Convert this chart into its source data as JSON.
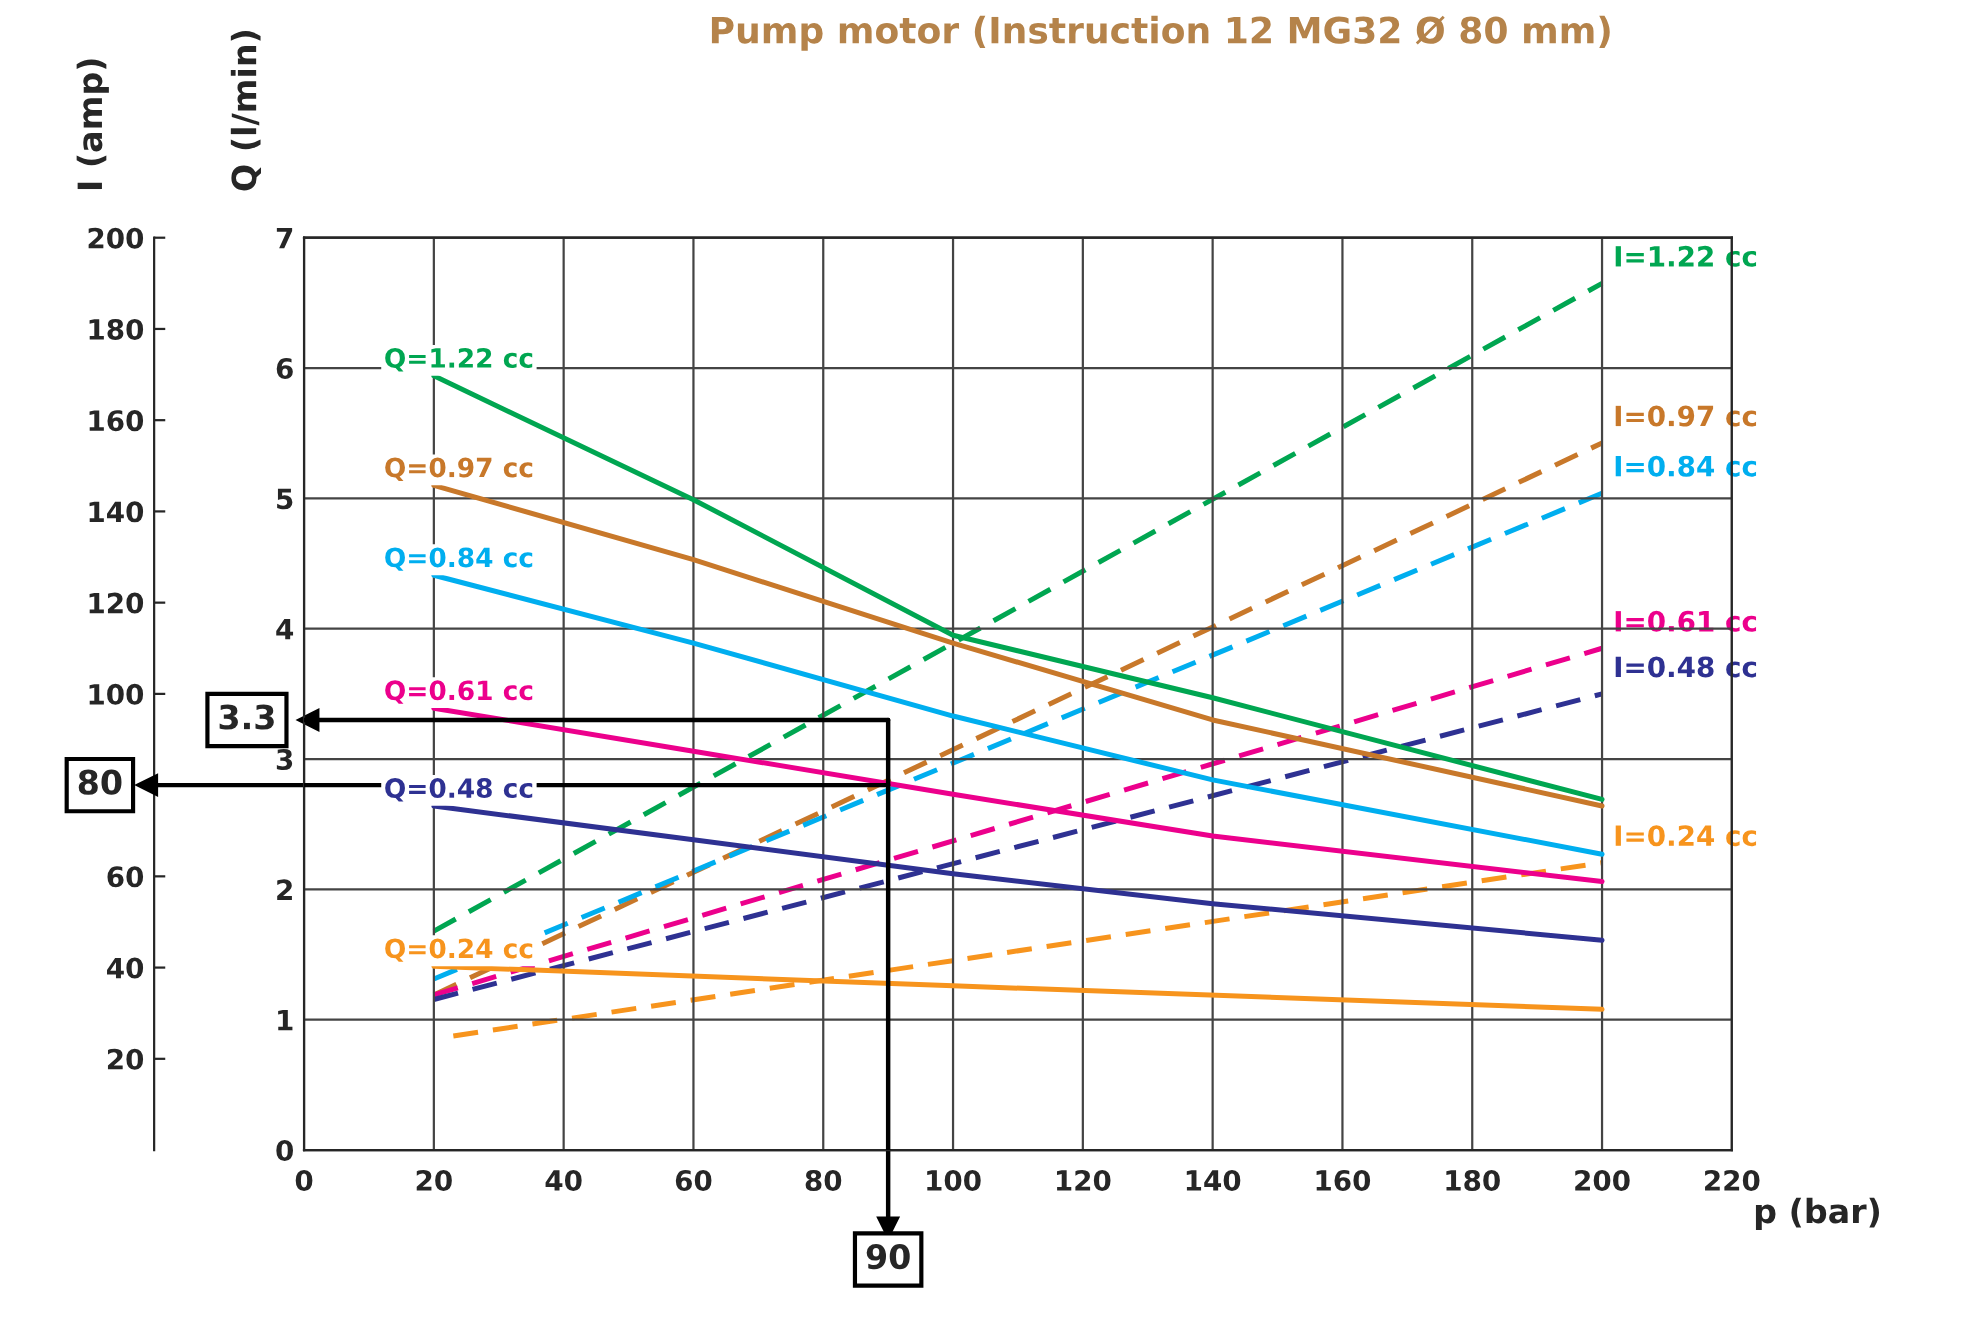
{
  "chart_data": {
    "type": "line",
    "title": "Pump motor (Instruction 12 MG32 Ø 80 mm)",
    "xlabel": "p (bar)",
    "ylabel": "Q (l/min)",
    "y2label": "I (amp)",
    "xlim": [
      0,
      220
    ],
    "xticks": [
      0,
      20,
      40,
      60,
      80,
      100,
      120,
      140,
      160,
      180,
      200,
      220
    ],
    "ylim": [
      0,
      7
    ],
    "yticks": [
      0,
      1,
      2,
      3,
      4,
      5,
      6,
      7
    ],
    "y2lim": [
      0,
      200
    ],
    "y2ticks": [
      20,
      40,
      60,
      100,
      120,
      140,
      160,
      180,
      200
    ],
    "grid": true,
    "legend": false,
    "marker": "none",
    "series": [
      {
        "name": "Q=1.22 cc",
        "color": "#00a651",
        "line_style": "solid",
        "x": [
          20,
          60,
          100,
          140,
          200
        ],
        "values": [
          5.94,
          4.99,
          3.95,
          3.47,
          2.69
        ]
      },
      {
        "name": "Q=0.97 cc",
        "color": "#c8782a",
        "line_style": "solid",
        "x": [
          20,
          60,
          100,
          140,
          200
        ],
        "values": [
          5.1,
          4.53,
          3.89,
          3.3,
          2.64
        ]
      },
      {
        "name": "Q=0.84 cc",
        "color": "#00aeef",
        "line_style": "solid",
        "x": [
          20,
          60,
          100,
          140,
          200
        ],
        "values": [
          4.41,
          3.89,
          3.33,
          2.84,
          2.27
        ]
      },
      {
        "name": "Q=0.61 cc",
        "color": "#ec008c",
        "line_style": "solid",
        "x": [
          20,
          60,
          100,
          140,
          200
        ],
        "values": [
          3.39,
          3.06,
          2.73,
          2.41,
          2.06
        ]
      },
      {
        "name": "Q=0.48 cc",
        "color": "#2e3192",
        "line_style": "solid",
        "x": [
          20,
          60,
          100,
          140,
          200
        ],
        "values": [
          2.64,
          2.38,
          2.12,
          1.89,
          1.61
        ]
      },
      {
        "name": "Q=0.24 cc",
        "color": "#f7941d",
        "line_style": "solid",
        "x": [
          20,
          100,
          200
        ],
        "values": [
          1.41,
          1.26,
          1.08
        ]
      },
      {
        "name": "I=1.22 cc",
        "color": "#00a651",
        "line_style": "dashed",
        "axis": "y2",
        "x": [
          20,
          200
        ],
        "values": [
          48,
          190
        ]
      },
      {
        "name": "I=0.97 cc",
        "color": "#c8782a",
        "line_style": "dashed",
        "axis": "y2",
        "x": [
          20,
          200
        ],
        "values": [
          34,
          155
        ]
      },
      {
        "name": "I=0.84 cc",
        "color": "#00aeef",
        "line_style": "dashed",
        "axis": "y2",
        "x": [
          20,
          200
        ],
        "values": [
          37.5,
          144
        ]
      },
      {
        "name": "I=0.61 cc",
        "color": "#ec008c",
        "line_style": "dashed",
        "axis": "y2",
        "x": [
          20,
          200
        ],
        "values": [
          34,
          110
        ]
      },
      {
        "name": "I=0.48 cc",
        "color": "#2e3192",
        "line_style": "dashed",
        "axis": "y2",
        "x": [
          20,
          200
        ],
        "values": [
          33,
          100
        ]
      },
      {
        "name": "I=0.24 cc",
        "color": "#f7941d",
        "line_style": "dashed",
        "axis": "y2",
        "x": [
          23,
          200
        ],
        "values": [
          25,
          63
        ]
      }
    ],
    "ref_lines": [
      {
        "axis": "x",
        "value": 90,
        "label": "90",
        "color": "#000000"
      },
      {
        "axis": "y",
        "value": 3.3,
        "label": "3.3",
        "color": "#000000"
      },
      {
        "axis": "y2",
        "value": 80,
        "label": "80",
        "color": "#000000"
      }
    ]
  }
}
